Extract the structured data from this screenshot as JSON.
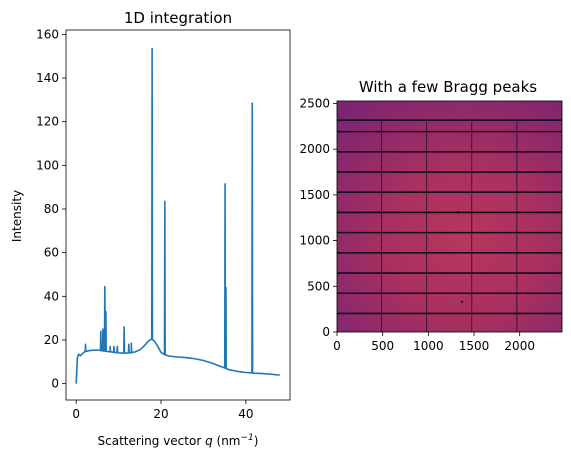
{
  "chart_data": [
    {
      "type": "line",
      "title": "1D integration",
      "xlabel_prefix": "Scattering vector ",
      "xlabel_var": "q",
      "xlabel_unit": " (nm",
      "xlabel_sup": "−1",
      "xlabel_end": ")",
      "ylabel": "Intensity",
      "xlim": [
        -2.4,
        50.4
      ],
      "ylim": [
        -7.5,
        162
      ],
      "xticks": [
        0,
        20,
        40
      ],
      "yticks": [
        0,
        20,
        40,
        60,
        80,
        100,
        120,
        140,
        160
      ],
      "grid": false,
      "series": [
        {
          "color": "#1f77b4",
          "baseline": [
            [
              0.0,
              0.0
            ],
            [
              0.3,
              12.0
            ],
            [
              0.6,
              13.5
            ],
            [
              1.0,
              12.8
            ],
            [
              1.5,
              13.8
            ],
            [
              2.0,
              14.6
            ],
            [
              3.0,
              15.1
            ],
            [
              4.0,
              15.3
            ],
            [
              5.0,
              15.4
            ],
            [
              6.0,
              15.1
            ],
            [
              7.0,
              14.8
            ],
            [
              8.0,
              14.6
            ],
            [
              9.0,
              14.3
            ],
            [
              10.0,
              14.1
            ],
            [
              11.0,
              14.0
            ],
            [
              12.0,
              14.0
            ],
            [
              13.0,
              14.2
            ],
            [
              14.0,
              14.6
            ],
            [
              15.0,
              15.5
            ],
            [
              16.0,
              17.2
            ],
            [
              17.0,
              19.4
            ],
            [
              17.6,
              20.3
            ],
            [
              18.0,
              20.2
            ],
            [
              18.5,
              19.3
            ],
            [
              19.0,
              17.8
            ],
            [
              20.0,
              14.3
            ],
            [
              21.0,
              13.1
            ],
            [
              22.0,
              12.6
            ],
            [
              24.0,
              12.2
            ],
            [
              26.0,
              11.9
            ],
            [
              28.0,
              11.4
            ],
            [
              30.0,
              10.6
            ],
            [
              32.0,
              9.4
            ],
            [
              34.0,
              7.9
            ],
            [
              35.0,
              7.2
            ],
            [
              36.0,
              6.4
            ],
            [
              38.0,
              5.6
            ],
            [
              40.0,
              5.1
            ],
            [
              42.0,
              4.8
            ],
            [
              44.0,
              4.6
            ],
            [
              46.0,
              4.3
            ],
            [
              48.0,
              3.9
            ]
          ],
          "peaks": [
            [
              2.2,
              18.0
            ],
            [
              5.8,
              24.0
            ],
            [
              6.3,
              25.0
            ],
            [
              6.75,
              44.5
            ],
            [
              7.0,
              33.0
            ],
            [
              8.0,
              17.0
            ],
            [
              8.9,
              17.0
            ],
            [
              9.7,
              17.0
            ],
            [
              11.3,
              26.0
            ],
            [
              12.4,
              18.0
            ],
            [
              13.0,
              18.5
            ],
            [
              17.9,
              153.5
            ],
            [
              20.9,
              83.5
            ],
            [
              35.1,
              91.5
            ],
            [
              35.3,
              44.0
            ],
            [
              41.5,
              128.5
            ]
          ]
        }
      ]
    },
    {
      "type": "heatmap",
      "title": "With a few Bragg peaks",
      "xlim": [
        0,
        2463
      ],
      "ylim": [
        0,
        2527
      ],
      "xticks": [
        0,
        500,
        1000,
        1500,
        2000
      ],
      "yticks": [
        0,
        500,
        1000,
        1500,
        2000,
        2500
      ],
      "colormap": "magma",
      "center": [
        1400,
        1000
      ],
      "colors": {
        "center": "#b8365e",
        "edge": "#7d2473",
        "gap": "#120a1e"
      },
      "module_gaps_y": [
        203,
        424,
        645,
        866,
        1087,
        1308,
        1529,
        1750,
        1971,
        2192,
        2317
      ],
      "module_gaps_x": [
        487,
        981,
        1475,
        1969
      ],
      "bragg_spots": [
        [
          1330,
          1310
        ],
        [
          1370,
          330
        ]
      ]
    }
  ]
}
